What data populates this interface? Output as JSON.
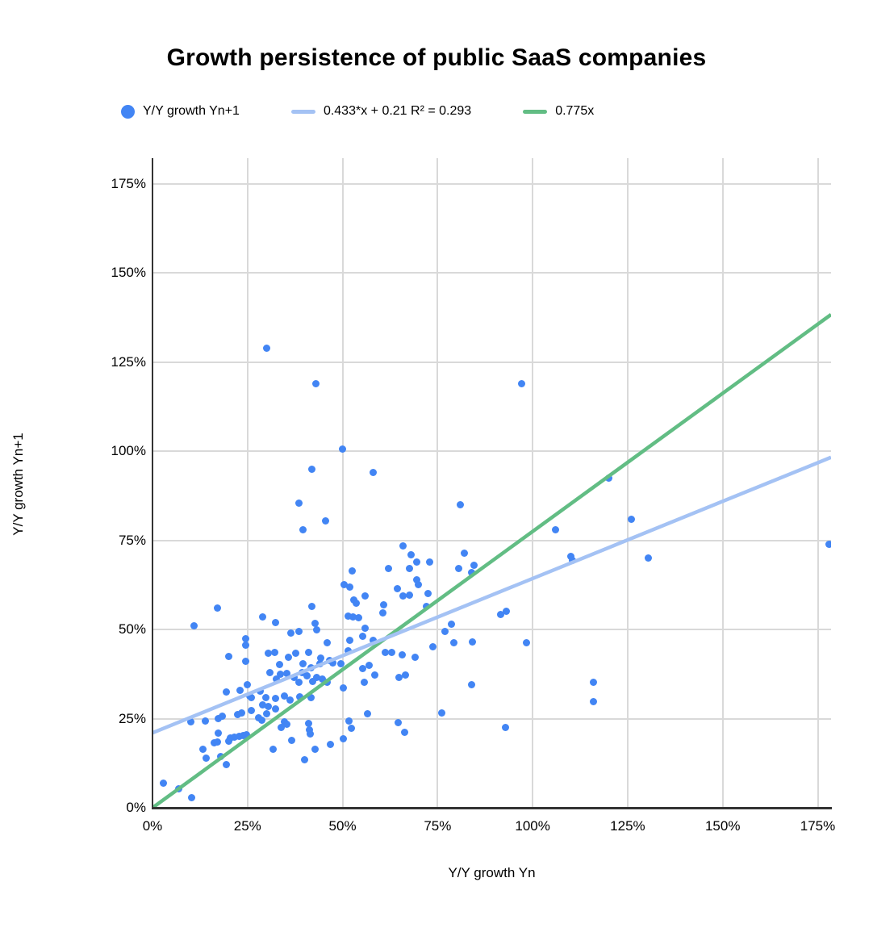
{
  "title": "Growth persistence of public SaaS companies",
  "legend": [
    {
      "label": "Y/Y growth Yn+1",
      "swatch": "dot",
      "color": "#4285f4"
    },
    {
      "label": "0.433*x + 0.21 R² = 0.293",
      "swatch": "line",
      "color": "#a4c2f4"
    },
    {
      "label": "0.775x",
      "swatch": "line",
      "color": "#62bd84"
    }
  ],
  "colors": {
    "point": "#4285f4",
    "trend_fit": "#a4c2f4",
    "trend_ref": "#62bd84",
    "grid": "#d9d9d9",
    "axis": "#333333",
    "text": "#000000"
  },
  "chart_data": {
    "type": "scatter",
    "title": "Growth persistence of public SaaS companies",
    "xlabel": "Y/Y growth Yn",
    "ylabel": "Y/Y growth Yn+1",
    "series_label": "Y/Y growth Yn+1",
    "units": "percent",
    "xlim": [
      0,
      178.5
    ],
    "ylim": [
      0,
      182.2
    ],
    "tick_values": [
      0,
      25,
      50,
      75,
      100,
      125,
      150,
      175
    ],
    "x_tick_labels": [
      "0%",
      "25%",
      "50%",
      "75%",
      "100%",
      "125%",
      "150%",
      "175%"
    ],
    "y_tick_labels": [
      "0%",
      "25%",
      "50%",
      "75%",
      "100%",
      "125%",
      "150%",
      "175%"
    ],
    "grid": true,
    "legend_position": "top",
    "trendlines": [
      {
        "label": "0.433*x + 0.21 R² = 0.293",
        "slope": 0.433,
        "intercept": 21,
        "r2": 0.293,
        "color": "#a4c2f4"
      },
      {
        "label": "0.775x",
        "slope": 0.775,
        "intercept": 0,
        "color": "#62bd84"
      }
    ],
    "points": [
      [
        30,
        129
      ],
      [
        43,
        119
      ],
      [
        97,
        119
      ],
      [
        50,
        100.5
      ],
      [
        42,
        95
      ],
      [
        58,
        94
      ],
      [
        120,
        92.5
      ],
      [
        38.5,
        85.5
      ],
      [
        81,
        85
      ],
      [
        126,
        81
      ],
      [
        45.5,
        80.5
      ],
      [
        39.5,
        78
      ],
      [
        106,
        78
      ],
      [
        178,
        74
      ],
      [
        66,
        73.5
      ],
      [
        82,
        71.5
      ],
      [
        68,
        71
      ],
      [
        110,
        70.5
      ],
      [
        110.5,
        69.3
      ],
      [
        130.5,
        70
      ],
      [
        52.5,
        66.5
      ],
      [
        62,
        67
      ],
      [
        67.5,
        67
      ],
      [
        73,
        69
      ],
      [
        69.5,
        69
      ],
      [
        84,
        66
      ],
      [
        80.5,
        67
      ],
      [
        84.5,
        68
      ],
      [
        69.5,
        64
      ],
      [
        70,
        62.5
      ],
      [
        64.5,
        61.5
      ],
      [
        50.5,
        62.5
      ],
      [
        52,
        62
      ],
      [
        66,
        59.3
      ],
      [
        67.5,
        59.7
      ],
      [
        72.5,
        60
      ],
      [
        56,
        59.5
      ],
      [
        53,
        58.3
      ],
      [
        60.8,
        57
      ],
      [
        53.5,
        57.3
      ],
      [
        17,
        56
      ],
      [
        42,
        56.5
      ],
      [
        72,
        56.5
      ],
      [
        60.5,
        54.6
      ],
      [
        91.5,
        54.3
      ],
      [
        93,
        55.2
      ],
      [
        51.5,
        53.7
      ],
      [
        52.7,
        53.5
      ],
      [
        54.2,
        53.4
      ],
      [
        29,
        53.5
      ],
      [
        11,
        51
      ],
      [
        32.3,
        52
      ],
      [
        42.7,
        51.8
      ],
      [
        43.2,
        50
      ],
      [
        36.5,
        49
      ],
      [
        38.6,
        49.5
      ],
      [
        78.7,
        51.5
      ],
      [
        77,
        49.5
      ],
      [
        98.3,
        46.2
      ],
      [
        56,
        50.4
      ],
      [
        55.2,
        48
      ],
      [
        52,
        47
      ],
      [
        58,
        47
      ],
      [
        45.9,
        46.3
      ],
      [
        24.5,
        47.5
      ],
      [
        24.5,
        45.5
      ],
      [
        79.3,
        46.2
      ],
      [
        84.1,
        46.4
      ],
      [
        73.8,
        45.1
      ],
      [
        51.5,
        44
      ],
      [
        61.3,
        43.5
      ],
      [
        63,
        43.5
      ],
      [
        65.6,
        42.9
      ],
      [
        69,
        42.2
      ],
      [
        20,
        42.5
      ],
      [
        24.5,
        41
      ],
      [
        30.4,
        43.3
      ],
      [
        32.1,
        43.6
      ],
      [
        35.8,
        42.1
      ],
      [
        37.7,
        43.3
      ],
      [
        41,
        43.6
      ],
      [
        44.3,
        41.9
      ],
      [
        46.6,
        41.3
      ],
      [
        33.5,
        40.1
      ],
      [
        39.6,
        40.3
      ],
      [
        41.8,
        39.3
      ],
      [
        44,
        40.3
      ],
      [
        47.5,
        40.6
      ],
      [
        49.5,
        40.4
      ],
      [
        55.2,
        39
      ],
      [
        57,
        40
      ],
      [
        58.4,
        37.2
      ],
      [
        116,
        35.3
      ],
      [
        116,
        29.8
      ],
      [
        30.8,
        37.9
      ],
      [
        32.6,
        36.2
      ],
      [
        33.7,
        37.4
      ],
      [
        35.4,
        37.7
      ],
      [
        37.2,
        36.6
      ],
      [
        38.6,
        35.1
      ],
      [
        39.3,
        37.9
      ],
      [
        40.7,
        37
      ],
      [
        42.2,
        35.5
      ],
      [
        43.2,
        36.6
      ],
      [
        44.6,
        36.2
      ],
      [
        46,
        35.3
      ],
      [
        64.8,
        36.5
      ],
      [
        66.6,
        37.2
      ],
      [
        55.7,
        35.3
      ],
      [
        19.5,
        32.4
      ],
      [
        23,
        33
      ],
      [
        25,
        34.6
      ],
      [
        25.5,
        31.3
      ],
      [
        28.4,
        32.8
      ],
      [
        29.8,
        31
      ],
      [
        32.3,
        30.6
      ],
      [
        34.7,
        31.3
      ],
      [
        36.1,
        30.3
      ],
      [
        38.8,
        31.1
      ],
      [
        41.8,
        30.8
      ],
      [
        26,
        31
      ],
      [
        83.9,
        34.6
      ],
      [
        50.3,
        33.6
      ],
      [
        28.9,
        28.8
      ],
      [
        30.5,
        28.3
      ],
      [
        32.4,
        27.8
      ],
      [
        25.9,
        27.2
      ],
      [
        22.3,
        26.2
      ],
      [
        23.5,
        26.5
      ],
      [
        18.4,
        25.8
      ],
      [
        17.4,
        25.1
      ],
      [
        28,
        25.2
      ],
      [
        28.7,
        24.5
      ],
      [
        30.1,
        26.3
      ],
      [
        76,
        26.5
      ],
      [
        64.6,
        23.8
      ],
      [
        66.4,
        21.2
      ],
      [
        92.9,
        22.5
      ],
      [
        10,
        24
      ],
      [
        14,
        24.3
      ],
      [
        34.8,
        24
      ],
      [
        35.3,
        23.4
      ],
      [
        33.9,
        22.5
      ],
      [
        41,
        23.7
      ],
      [
        41.3,
        21.9
      ],
      [
        41.5,
        20.8
      ],
      [
        36.7,
        19
      ],
      [
        56.5,
        26.4
      ],
      [
        51.6,
        24.3
      ],
      [
        52.4,
        22.2
      ],
      [
        50.2,
        19.4
      ],
      [
        46.9,
        17.7
      ],
      [
        42.7,
        16.4
      ],
      [
        40.1,
        13.4
      ],
      [
        17.3,
        20.9
      ],
      [
        20.5,
        19.6
      ],
      [
        21.6,
        19.7
      ],
      [
        22.9,
        20
      ],
      [
        23.9,
        20.2
      ],
      [
        24.8,
        20.5
      ],
      [
        16.2,
        18.2
      ],
      [
        17.1,
        18.5
      ],
      [
        20,
        18.7
      ],
      [
        13.3,
        16.4
      ],
      [
        14.2,
        13.9
      ],
      [
        17.9,
        14.3
      ],
      [
        19.4,
        12.2
      ],
      [
        31.8,
        16.4
      ],
      [
        2.8,
        7
      ],
      [
        7,
        5.3
      ],
      [
        10.2,
        2.8
      ]
    ]
  }
}
